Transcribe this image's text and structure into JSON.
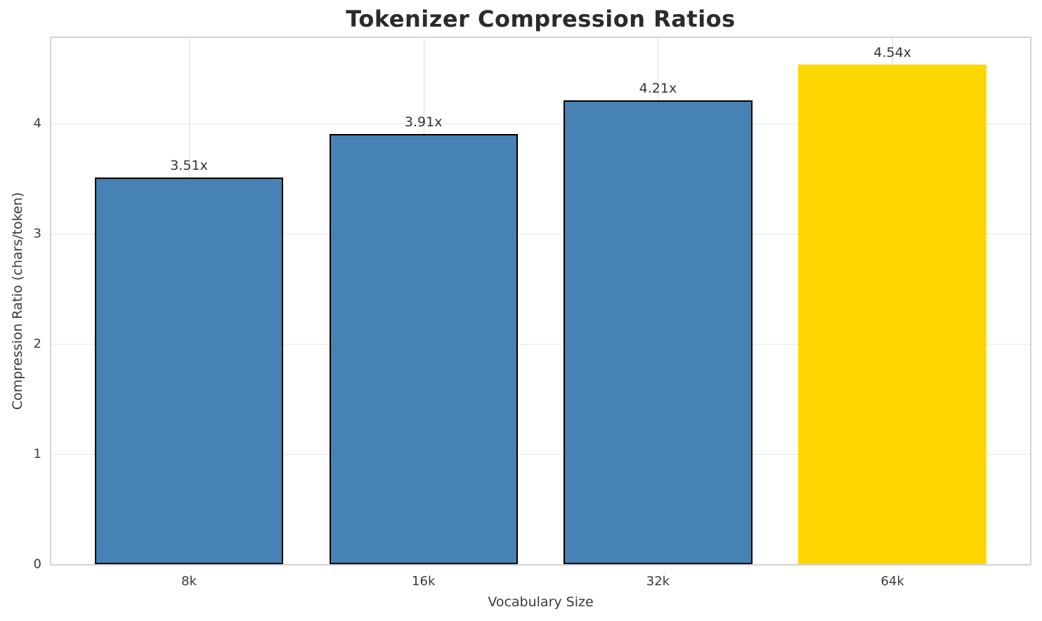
{
  "chart_data": {
    "type": "bar",
    "title": "Tokenizer Compression Ratios",
    "xlabel": "Vocabulary Size",
    "ylabel": "Compression Ratio (chars/token)",
    "categories": [
      "8k",
      "16k",
      "32k",
      "64k"
    ],
    "values": [
      3.51,
      3.91,
      4.21,
      4.54
    ],
    "bar_labels": [
      "3.51x",
      "3.91x",
      "4.21x",
      "4.54x"
    ],
    "bar_colors": [
      "#4682b4",
      "#4682b4",
      "#4682b4",
      "#ffd700"
    ],
    "bar_edge_colors": [
      "#000000",
      "#000000",
      "#000000",
      "none"
    ],
    "highlighted_category": "64k",
    "yticks": [
      0,
      1,
      2,
      3,
      4
    ],
    "ylim": [
      0,
      4.78
    ],
    "grid": true,
    "legend_position": "none",
    "colors": {
      "bar_default": "#4682b4",
      "bar_highlight": "#ffd700",
      "bar_edge": "#000000",
      "spine": "#d3d3d3",
      "gridline_horizontal": "#e7e7e7",
      "gridline_vertical": "#dcdcdc",
      "title_text": "#2b2b2b",
      "tick_text": "#3a3a3a"
    }
  }
}
